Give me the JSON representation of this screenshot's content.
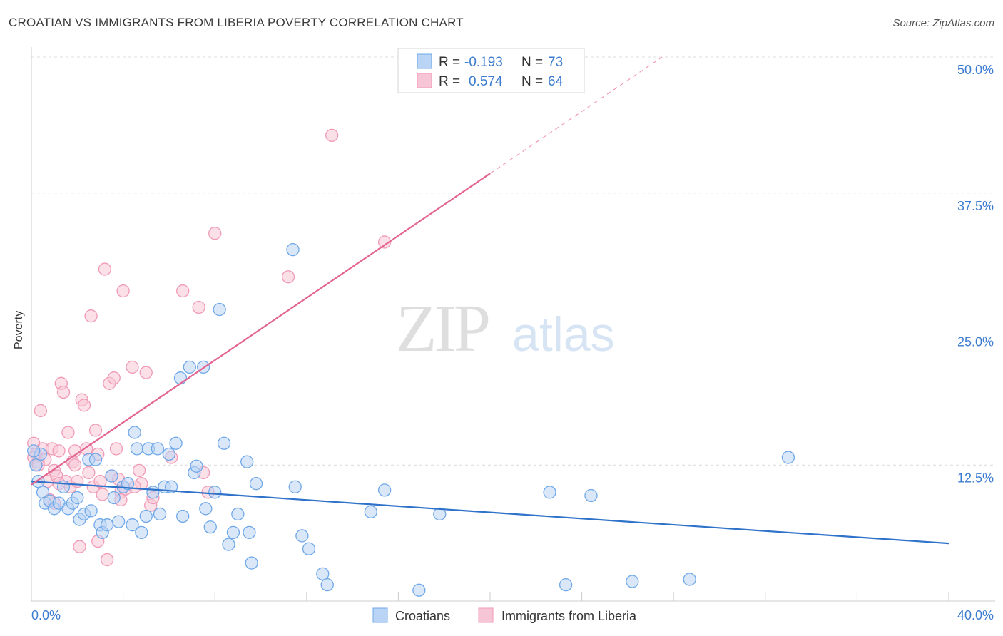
{
  "title": "CROATIAN VS IMMIGRANTS FROM LIBERIA POVERTY CORRELATION CHART",
  "source": "Source: ZipAtlas.com",
  "watermark": {
    "zip": "ZIP",
    "atlas": "atlas"
  },
  "colors": {
    "blue": "#6fa8e8",
    "blue_fill": "#b9d4f4",
    "blue_line": "#2e72c9",
    "pink": "#f09ab8",
    "pink_fill": "#f7c6d6",
    "pink_line": "#e2648f",
    "value_text": "#3c7cd0"
  },
  "legend_top": [
    {
      "r_label": "R =",
      "r_value": "-0.193",
      "n_label": "N =",
      "n_value": "73"
    },
    {
      "r_label": "R =",
      "r_value": "0.574",
      "n_label": "N =",
      "n_value": "64"
    }
  ],
  "chart_data": {
    "type": "scatter",
    "title": "CROATIAN VS IMMIGRANTS FROM LIBERIA POVERTY CORRELATION CHART",
    "xlabel": "",
    "ylabel": "Poverty",
    "xlim": [
      0,
      40
    ],
    "ylim": [
      0,
      50
    ],
    "x_tick_labels": [
      "0.0%",
      "40.0%"
    ],
    "y_tick_labels": [
      "12.5%",
      "25.0%",
      "37.5%",
      "50.0%"
    ],
    "y_ticks": [
      12.5,
      25.0,
      37.5,
      50.0
    ],
    "grid": true,
    "legend_position": "bottom",
    "series": [
      {
        "name": "Croatians",
        "trend": {
          "x0": 0,
          "y0": 11.0,
          "x1": 40,
          "y1": 5.3
        },
        "points": [
          [
            0.2,
            12.5
          ],
          [
            0.3,
            11.0
          ],
          [
            0.4,
            13.5
          ],
          [
            0.5,
            10.0
          ],
          [
            0.6,
            9.0
          ],
          [
            0.8,
            9.2
          ],
          [
            1.0,
            8.5
          ],
          [
            1.2,
            9.0
          ],
          [
            1.4,
            10.5
          ],
          [
            1.6,
            8.5
          ],
          [
            1.8,
            9.0
          ],
          [
            2.0,
            9.5
          ],
          [
            2.1,
            7.5
          ],
          [
            2.3,
            8.0
          ],
          [
            2.5,
            13.0
          ],
          [
            2.6,
            8.3
          ],
          [
            2.8,
            13.0
          ],
          [
            3.0,
            7.0
          ],
          [
            3.1,
            6.3
          ],
          [
            3.3,
            7.0
          ],
          [
            3.5,
            11.5
          ],
          [
            3.6,
            9.5
          ],
          [
            3.8,
            7.3
          ],
          [
            4.0,
            10.5
          ],
          [
            4.2,
            10.8
          ],
          [
            4.4,
            7.0
          ],
          [
            4.5,
            15.5
          ],
          [
            4.6,
            14.0
          ],
          [
            4.8,
            6.3
          ],
          [
            5.0,
            7.8
          ],
          [
            5.1,
            14.0
          ],
          [
            5.3,
            10.0
          ],
          [
            5.5,
            14.0
          ],
          [
            5.6,
            8.0
          ],
          [
            5.8,
            10.5
          ],
          [
            6.0,
            13.5
          ],
          [
            6.1,
            10.5
          ],
          [
            6.3,
            14.5
          ],
          [
            6.5,
            20.5
          ],
          [
            6.6,
            7.8
          ],
          [
            6.9,
            21.5
          ],
          [
            7.1,
            11.8
          ],
          [
            7.2,
            12.4
          ],
          [
            7.5,
            21.5
          ],
          [
            7.6,
            8.5
          ],
          [
            7.8,
            6.8
          ],
          [
            8.0,
            10.0
          ],
          [
            8.2,
            26.8
          ],
          [
            8.4,
            14.5
          ],
          [
            8.6,
            5.2
          ],
          [
            8.8,
            6.3
          ],
          [
            9.0,
            8.0
          ],
          [
            9.4,
            12.8
          ],
          [
            9.5,
            6.3
          ],
          [
            9.6,
            3.5
          ],
          [
            9.8,
            10.8
          ],
          [
            11.4,
            32.3
          ],
          [
            11.5,
            10.5
          ],
          [
            11.8,
            6.0
          ],
          [
            12.1,
            4.8
          ],
          [
            12.7,
            2.5
          ],
          [
            12.9,
            1.5
          ],
          [
            14.8,
            8.2
          ],
          [
            15.4,
            10.2
          ],
          [
            16.9,
            1.0
          ],
          [
            17.8,
            8.0
          ],
          [
            22.6,
            10.0
          ],
          [
            23.3,
            1.5
          ],
          [
            24.4,
            9.7
          ],
          [
            26.2,
            1.8
          ],
          [
            28.7,
            2.0
          ],
          [
            33.0,
            13.2
          ],
          [
            0.1,
            13.8
          ]
        ]
      },
      {
        "name": "Immigrants from Liberia",
        "trend": {
          "x0": 0,
          "y0": 10.7,
          "x1": 20,
          "y1": 39.3,
          "x2": 27.5,
          "y2": 50.0
        },
        "points": [
          [
            0.1,
            14.5
          ],
          [
            0.2,
            13.5
          ],
          [
            0.3,
            12.8
          ],
          [
            0.4,
            17.5
          ],
          [
            0.5,
            14.0
          ],
          [
            0.6,
            13.0
          ],
          [
            0.7,
            11.0
          ],
          [
            0.8,
            9.3
          ],
          [
            0.9,
            14.0
          ],
          [
            1.0,
            12.0
          ],
          [
            1.1,
            11.5
          ],
          [
            1.2,
            13.8
          ],
          [
            1.3,
            20.0
          ],
          [
            1.4,
            19.2
          ],
          [
            1.5,
            11.0
          ],
          [
            1.6,
            15.5
          ],
          [
            1.7,
            10.5
          ],
          [
            1.8,
            12.8
          ],
          [
            1.9,
            13.8
          ],
          [
            2.0,
            11.0
          ],
          [
            2.1,
            5.0
          ],
          [
            2.2,
            18.5
          ],
          [
            2.3,
            18.0
          ],
          [
            2.4,
            14.0
          ],
          [
            2.5,
            11.8
          ],
          [
            2.6,
            26.2
          ],
          [
            2.7,
            10.5
          ],
          [
            2.8,
            15.7
          ],
          [
            2.9,
            13.5
          ],
          [
            3.0,
            11.0
          ],
          [
            3.1,
            9.8
          ],
          [
            3.2,
            30.5
          ],
          [
            3.3,
            3.8
          ],
          [
            3.4,
            20.0
          ],
          [
            3.5,
            11.5
          ],
          [
            3.6,
            20.5
          ],
          [
            3.7,
            14.0
          ],
          [
            3.8,
            11.2
          ],
          [
            3.9,
            10.0
          ],
          [
            4.0,
            28.5
          ],
          [
            4.1,
            10.3
          ],
          [
            4.4,
            21.5
          ],
          [
            4.7,
            12.0
          ],
          [
            4.8,
            10.8
          ],
          [
            5.0,
            21.0
          ],
          [
            5.2,
            8.8
          ],
          [
            5.3,
            9.5
          ],
          [
            6.1,
            13.2
          ],
          [
            6.6,
            28.5
          ],
          [
            7.3,
            27.0
          ],
          [
            7.5,
            11.8
          ],
          [
            7.7,
            10.0
          ],
          [
            8.0,
            33.8
          ],
          [
            11.2,
            29.8
          ],
          [
            13.1,
            42.8
          ],
          [
            15.4,
            33.0
          ],
          [
            0.1,
            13.2
          ],
          [
            0.3,
            12.5
          ],
          [
            1.0,
            9.0
          ],
          [
            1.9,
            12.5
          ],
          [
            2.9,
            5.5
          ],
          [
            3.9,
            9.3
          ],
          [
            4.5,
            10.5
          ],
          [
            1.2,
            10.8
          ]
        ]
      }
    ]
  }
}
